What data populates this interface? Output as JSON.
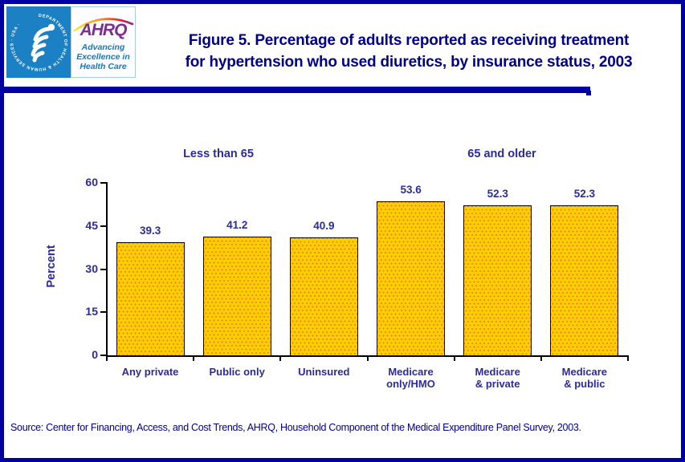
{
  "header": {
    "title_line1": "Figure 5. Percentage of adults reported as receiving treatment",
    "title_line2": "for hypertension who used diuretics, by insurance status, 2003",
    "logo": {
      "hhs_seal_text": "DEPARTMENT OF HEALTH & HUMAN SERVICES · USA ·",
      "ahrq_acronym": "AHRQ",
      "ahrq_tagline_line1": "Advancing",
      "ahrq_tagline_line2": "Excellence in",
      "ahrq_tagline_line3": "Health Care"
    }
  },
  "chart_data": {
    "type": "bar",
    "title": "Percentage of adults reported as receiving treatment for hypertension who used diuretics, by insurance status, 2003",
    "xlabel": "",
    "ylabel": "Percent",
    "ylim": [
      0,
      60
    ],
    "yticks": [
      0,
      15,
      30,
      45,
      60
    ],
    "grid": false,
    "legend": "none",
    "group_labels": [
      "Less than 65",
      "65 and older"
    ],
    "categories": [
      "Any private",
      "Public only",
      "Uninsured",
      "Medicare\nonly/HMO",
      "Medicare\n& private",
      "Medicare\n& public"
    ],
    "values": [
      39.3,
      41.2,
      40.9,
      53.6,
      52.3,
      52.3
    ],
    "bar_color": "#FFCE00",
    "bar_dot_color": "#EE7918",
    "bar_border_color": "#000000"
  },
  "footer": {
    "source": "Source: Center for Financing, Access, and Cost Trends, AHRQ, Household Component of the Medical Expenditure Panel Survey, 2003."
  },
  "colors": {
    "page_border": "#0000A0",
    "divider_rule": "#0000A0",
    "title_text": "#00008B",
    "chart_text": "#2B2B9B",
    "hhs_blue": "#1B80C4",
    "ahrq_purple": "#7D2F8D",
    "tagline_blue": "#1778BE"
  }
}
